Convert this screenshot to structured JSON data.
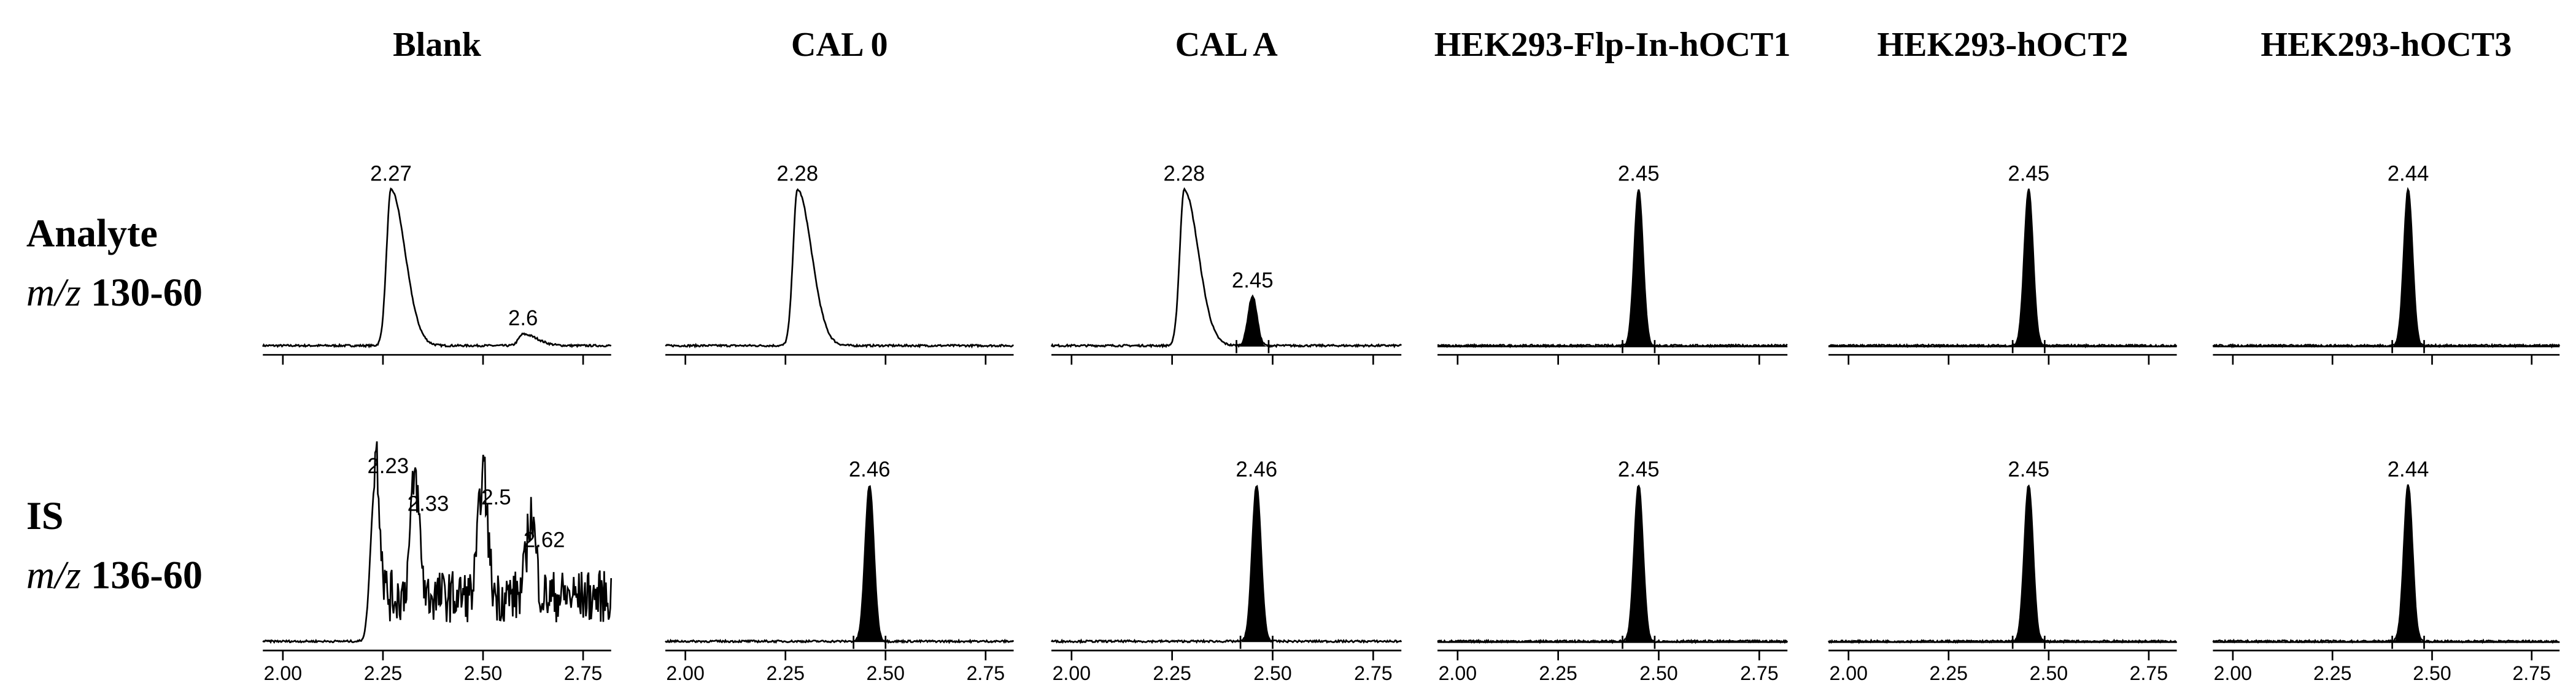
{
  "columns": [
    "Blank",
    "CAL 0",
    "CAL A",
    "HEK293-Flp-In-hOCT1",
    "HEK293-hOCT2",
    "HEK293-hOCT3"
  ],
  "rows": [
    {
      "name": "Analyte",
      "ion_prefix": "m/z",
      "ion": "130-60"
    },
    {
      "name": "IS",
      "ion_prefix": "m/z",
      "ion": "136-60"
    }
  ],
  "xlim": [
    1.95,
    2.82
  ],
  "xticks": [
    {
      "value": 2.0,
      "label": "2.00"
    },
    {
      "value": 2.25,
      "label": "2.25"
    },
    {
      "value": 2.5,
      "label": "2.50"
    },
    {
      "value": 2.75,
      "label": "2.75"
    }
  ],
  "panels": [
    [
      {
        "peaks": [
          {
            "rt": 2.27
          },
          {
            "rt": 2.6
          }
        ]
      },
      {
        "peaks": [
          {
            "rt": 2.28
          }
        ]
      },
      {
        "peaks": [
          {
            "rt": 2.28
          },
          {
            "rt": 2.45,
            "fill": "#000000"
          }
        ]
      },
      {
        "peaks": [
          {
            "rt": 2.45,
            "fill": "#000000"
          }
        ]
      },
      {
        "peaks": [
          {
            "rt": 2.45,
            "fill": "#000000"
          }
        ]
      },
      {
        "peaks": [
          {
            "rt": 2.44,
            "fill": "#000000"
          }
        ]
      }
    ],
    [
      {
        "peaks": [
          {
            "rt": 2.23
          },
          {
            "rt": 2.33
          },
          {
            "rt": 2.5
          },
          {
            "rt": 2.62
          }
        ]
      },
      {
        "peaks": [
          {
            "rt": 2.46,
            "fill": "#000000"
          }
        ]
      },
      {
        "peaks": [
          {
            "rt": 2.46,
            "fill": "#000000"
          }
        ]
      },
      {
        "peaks": [
          {
            "rt": 2.45,
            "fill": "#000000"
          }
        ]
      },
      {
        "peaks": [
          {
            "rt": 2.45,
            "fill": "#000000"
          }
        ]
      },
      {
        "peaks": [
          {
            "rt": 2.44,
            "fill": "#000000"
          }
        ]
      }
    ]
  ]
}
